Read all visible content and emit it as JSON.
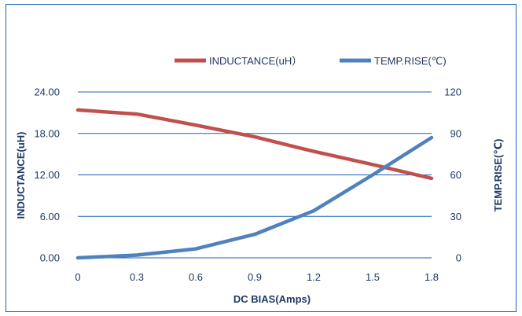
{
  "chart_data": {
    "type": "line",
    "x": [
      0,
      0.3,
      0.6,
      0.9,
      1.2,
      1.5,
      1.8
    ],
    "x_tick_labels": [
      "0",
      "0.3",
      "0.6",
      "0.9",
      "1.2",
      "1.5",
      "1.8"
    ],
    "xlabel": "DC BIAS(Amps)",
    "ylabel": "INDUCTANCE(uH)",
    "y2label": "TEMP.RISE(℃)",
    "ylim": [
      0,
      24
    ],
    "y2lim": [
      0,
      120
    ],
    "y_tick_labels": [
      "0.00",
      "6.00",
      "12.00",
      "18.00",
      "24.00"
    ],
    "y2_tick_labels": [
      "0",
      "30",
      "60",
      "90",
      "120"
    ],
    "grid": true,
    "legend_position": "top",
    "series": [
      {
        "name": "INDUCTANCE(uH）",
        "axis": "left",
        "color": "#c0504d",
        "values": [
          21.4,
          20.8,
          19.2,
          17.5,
          15.4,
          13.5,
          11.5
        ]
      },
      {
        "name": "TEMP.RISE(℃)",
        "axis": "right",
        "color": "#4f81bd",
        "values": [
          0,
          2,
          6.5,
          17,
          34,
          60,
          87
        ]
      }
    ]
  }
}
